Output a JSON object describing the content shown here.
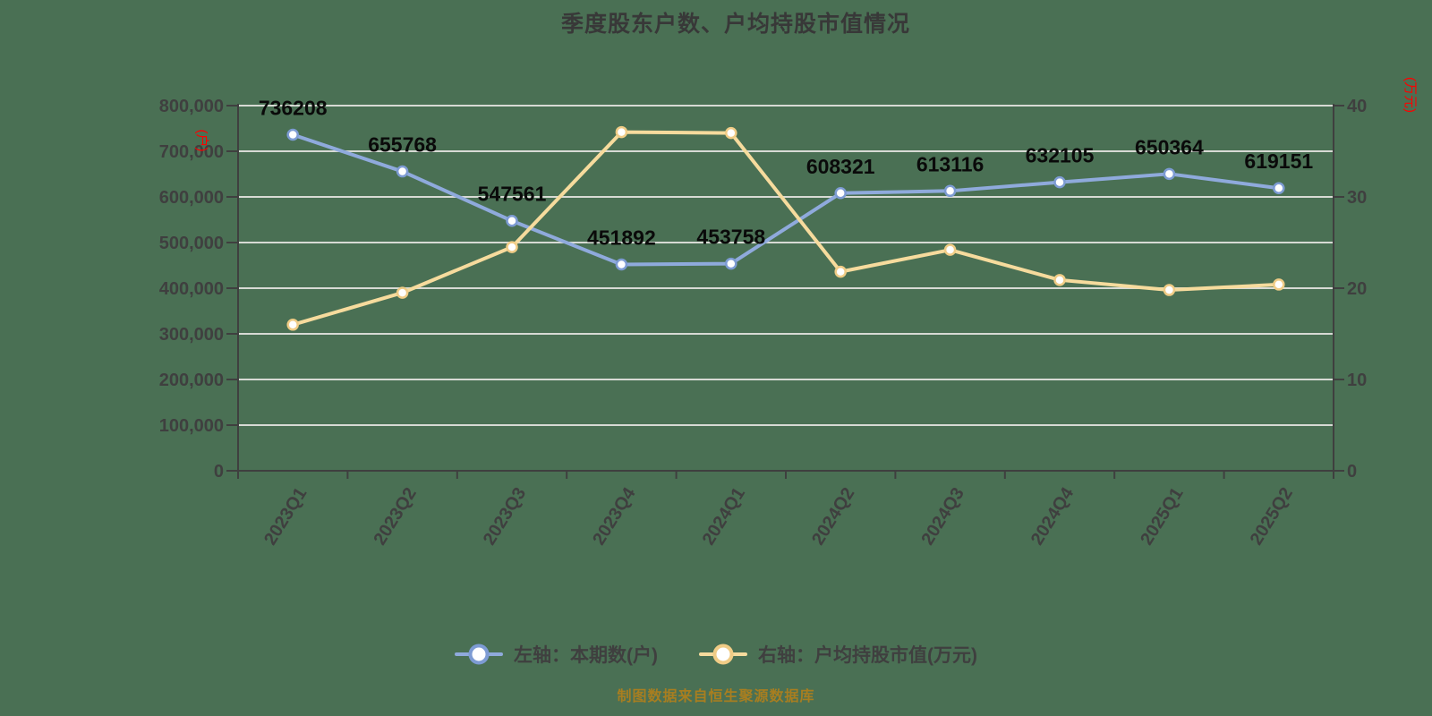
{
  "title": "季度股东户数、户均持股市值情况",
  "source_note": "制图数据来自恒生聚源数据库",
  "colors": {
    "background": "#4A7054",
    "grid": "#D7DAD4",
    "axis": "#3F3F3F",
    "tick_label": "#3F3F3F",
    "data_label": "#0A0A0A",
    "title": "#383838",
    "axis_unit": "#FE0000",
    "series_left": "#8FAADC",
    "series_left_marker_border": "#7D9BD3",
    "series_right": "#F6DB9D",
    "series_right_marker_border": "#F0CC86",
    "source_note": "#A87E20"
  },
  "legend": {
    "items": [
      {
        "label": "左轴：本期数(户)",
        "color": "#8FAADC",
        "marker_border": "#7D9BD3"
      },
      {
        "label": "右轴：户均持股市值(万元)",
        "color": "#F6DB9D",
        "marker_border": "#F0CC86"
      }
    ]
  },
  "chart_data": {
    "type": "line",
    "title": "季度股东户数、户均持股市值情况",
    "categories": [
      "2023Q1",
      "2023Q2",
      "2023Q3",
      "2023Q4",
      "2024Q1",
      "2024Q2",
      "2024Q3",
      "2024Q4",
      "2025Q1",
      "2025Q2"
    ],
    "series": [
      {
        "name": "本期数(户)",
        "legend_label": "左轴：本期数(户)",
        "axis": "left",
        "color": "#8FAADC",
        "marker_border": "#7D9BD3",
        "data_labels": true,
        "values": [
          736208,
          655768,
          547561,
          451892,
          453758,
          608321,
          613116,
          632105,
          650364,
          619151
        ]
      },
      {
        "name": "户均持股市值(万元)",
        "legend_label": "右轴：户均持股市值(万元)",
        "axis": "right",
        "color": "#F6DB9D",
        "marker_border": "#F0CC86",
        "data_labels": false,
        "values": [
          16.0,
          19.5,
          24.5,
          37.1,
          37.0,
          21.8,
          24.2,
          20.9,
          19.8,
          20.4
        ]
      }
    ],
    "left_axis": {
      "unit": "(户)",
      "min": 0,
      "max": 800000,
      "grid_step": 100000,
      "label_step": 100000,
      "format": "thousands",
      "tick_labels": [
        "0",
        "100,000",
        "200,000",
        "300,000",
        "400,000",
        "500,000",
        "600,000",
        "700,000",
        "800,000"
      ]
    },
    "right_axis": {
      "unit": "(万元)",
      "min": 0,
      "max": 40,
      "label_step": 10,
      "tick_labels": [
        "0",
        "10",
        "20",
        "30",
        "40"
      ]
    },
    "grid": true,
    "legend_position": "bottom",
    "x_label_rotation": -58
  }
}
